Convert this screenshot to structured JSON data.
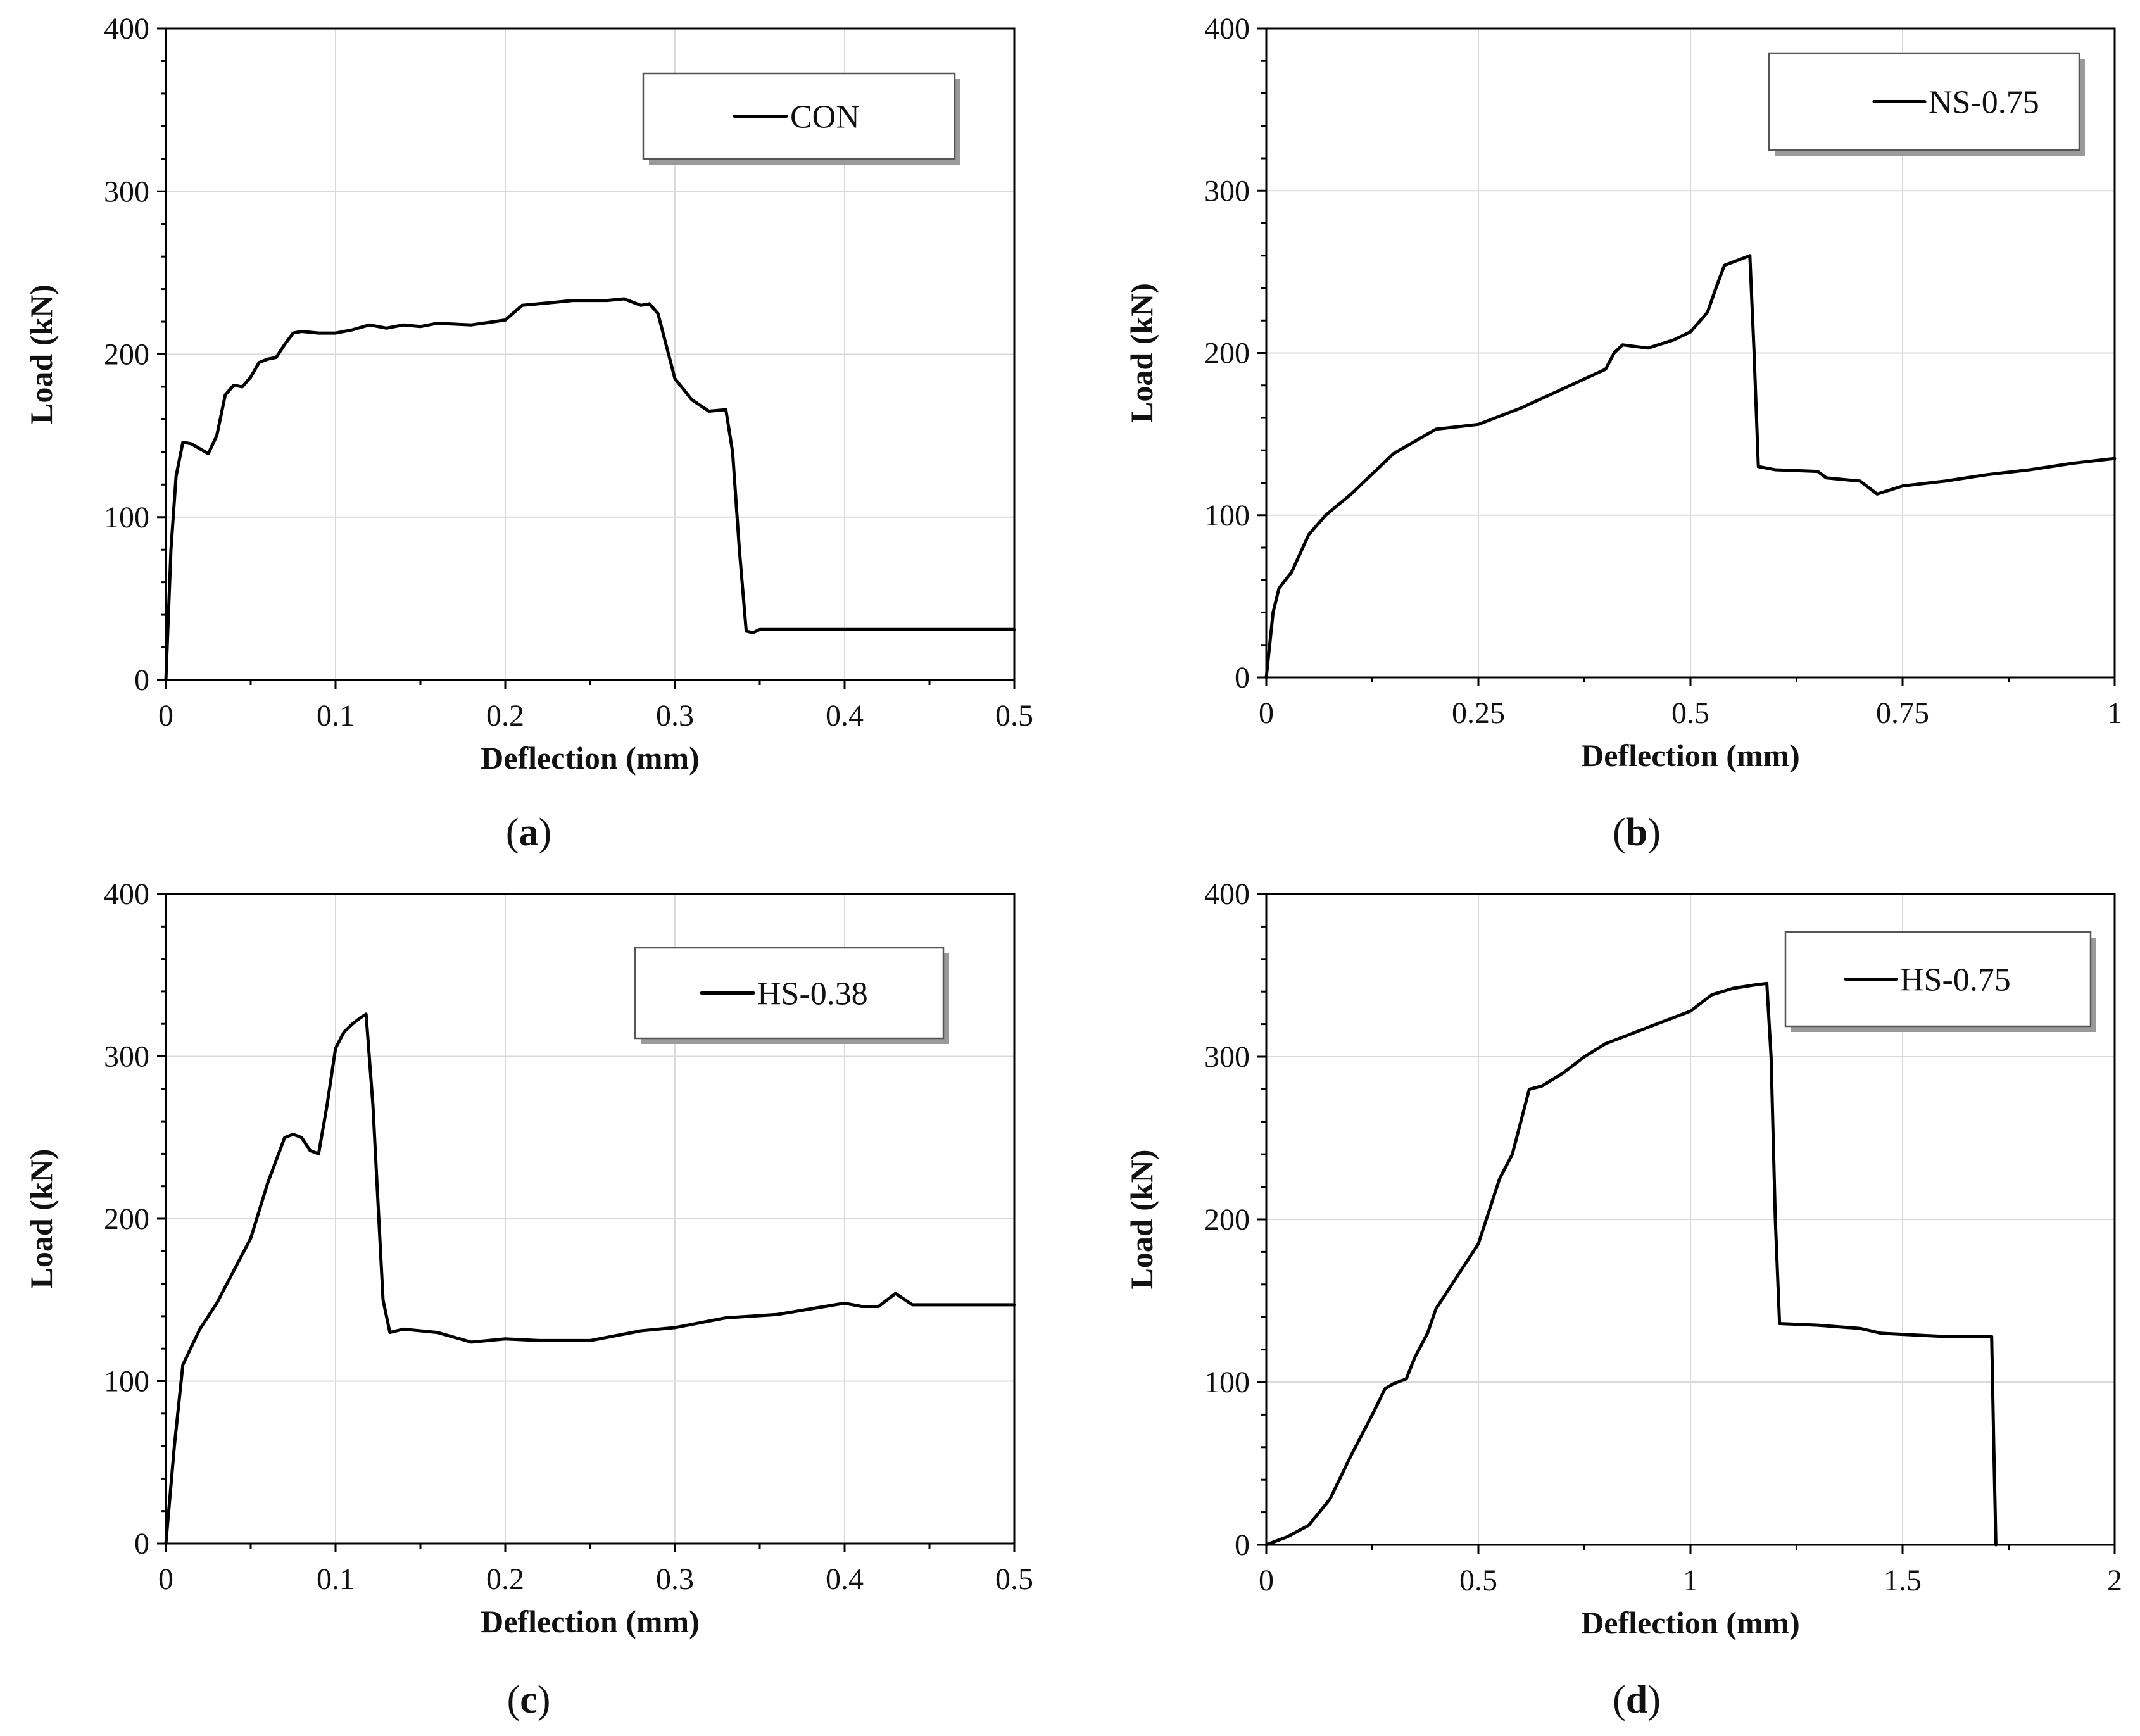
{
  "chart_data": [
    {
      "type": "line",
      "caption": "a",
      "xlabel": "Deflection (mm)",
      "ylabel": "Load (kN)",
      "xlim": [
        0,
        0.5
      ],
      "ylim": [
        0,
        400
      ],
      "xticks": [
        0,
        0.1,
        0.2,
        0.3,
        0.4,
        0.5
      ],
      "xtick_labels": [
        "0",
        "0.1",
        "0.2",
        "0.3",
        "0.4",
        "0.5"
      ],
      "yticks": [
        0,
        100,
        200,
        300,
        400
      ],
      "ytick_labels": [
        "0",
        "100",
        "200",
        "300",
        "400"
      ],
      "grid": true,
      "legend_position": "top-right",
      "series": [
        {
          "name": "CON",
          "x": [
            0,
            0.003,
            0.006,
            0.01,
            0.015,
            0.02,
            0.025,
            0.03,
            0.035,
            0.04,
            0.045,
            0.05,
            0.055,
            0.06,
            0.065,
            0.07,
            0.075,
            0.08,
            0.09,
            0.1,
            0.11,
            0.12,
            0.13,
            0.14,
            0.15,
            0.16,
            0.18,
            0.2,
            0.21,
            0.22,
            0.24,
            0.26,
            0.27,
            0.28,
            0.285,
            0.29,
            0.3,
            0.31,
            0.32,
            0.33,
            0.334,
            0.338,
            0.342,
            0.346,
            0.35,
            0.5
          ],
          "y": [
            0,
            80,
            125,
            146,
            145,
            142,
            139,
            150,
            175,
            181,
            180,
            186,
            195,
            197,
            198,
            206,
            213,
            214,
            213,
            213,
            215,
            218,
            216,
            218,
            217,
            219,
            218,
            221,
            230,
            231,
            233,
            233,
            234,
            230,
            231,
            225,
            185,
            172,
            165,
            166,
            140,
            80,
            30,
            29,
            31,
            31
          ]
        }
      ]
    },
    {
      "type": "line",
      "caption": "b",
      "xlabel": "Deflection (mm)",
      "ylabel": "Load (kN)",
      "xlim": [
        0,
        1
      ],
      "ylim": [
        0,
        400
      ],
      "xticks": [
        0,
        0.25,
        0.5,
        0.75,
        1
      ],
      "xtick_labels": [
        "0",
        "0.25",
        "0.5",
        "0.75",
        "1"
      ],
      "yticks": [
        0,
        100,
        200,
        300,
        400
      ],
      "ytick_labels": [
        "0",
        "100",
        "200",
        "300",
        "400"
      ],
      "grid": true,
      "legend_position": "top-right",
      "series": [
        {
          "name": "NS-0.75",
          "x": [
            0,
            0.008,
            0.015,
            0.03,
            0.05,
            0.07,
            0.1,
            0.15,
            0.2,
            0.25,
            0.3,
            0.35,
            0.4,
            0.41,
            0.42,
            0.45,
            0.48,
            0.5,
            0.52,
            0.53,
            0.54,
            0.55,
            0.57,
            0.575,
            0.58,
            0.6,
            0.65,
            0.66,
            0.7,
            0.72,
            0.75,
            0.8,
            0.85,
            0.9,
            0.95,
            1.0
          ],
          "y": [
            0,
            40,
            55,
            65,
            88,
            100,
            113,
            138,
            153,
            156,
            166,
            178,
            190,
            200,
            205,
            203,
            208,
            213,
            225,
            240,
            254,
            256,
            260,
            200,
            130,
            128,
            127,
            123,
            121,
            113,
            118,
            121,
            125,
            128,
            132,
            135
          ]
        }
      ]
    },
    {
      "type": "line",
      "caption": "c",
      "xlabel": "Deflection (mm)",
      "ylabel": "Load (kN)",
      "xlim": [
        0,
        0.5
      ],
      "ylim": [
        0,
        400
      ],
      "xticks": [
        0,
        0.1,
        0.2,
        0.3,
        0.4,
        0.5
      ],
      "xtick_labels": [
        "0",
        "0.1",
        "0.2",
        "0.3",
        "0.4",
        "0.5"
      ],
      "yticks": [
        0,
        100,
        200,
        300,
        400
      ],
      "ytick_labels": [
        "0",
        "100",
        "200",
        "300",
        "400"
      ],
      "grid": true,
      "legend_position": "top-right",
      "series": [
        {
          "name": "HS-0.38",
          "x": [
            0,
            0.005,
            0.01,
            0.02,
            0.03,
            0.04,
            0.05,
            0.06,
            0.07,
            0.075,
            0.08,
            0.085,
            0.09,
            0.095,
            0.1,
            0.105,
            0.11,
            0.115,
            0.118,
            0.122,
            0.128,
            0.132,
            0.14,
            0.16,
            0.18,
            0.2,
            0.22,
            0.25,
            0.28,
            0.3,
            0.33,
            0.36,
            0.4,
            0.41,
            0.42,
            0.43,
            0.44,
            0.45,
            0.5
          ],
          "y": [
            0,
            60,
            110,
            132,
            148,
            168,
            188,
            222,
            250,
            252,
            250,
            242,
            240,
            270,
            305,
            315,
            320,
            324,
            326,
            270,
            150,
            130,
            132,
            130,
            124,
            126,
            125,
            125,
            131,
            133,
            139,
            141,
            148,
            146,
            146,
            154,
            147,
            147,
            147
          ]
        }
      ]
    },
    {
      "type": "line",
      "caption": "d",
      "xlabel": "Deflection (mm)",
      "ylabel": "Load (kN)",
      "xlim": [
        0,
        2
      ],
      "ylim": [
        0,
        400
      ],
      "xticks": [
        0,
        0.5,
        1,
        1.5,
        2
      ],
      "xtick_labels": [
        "0",
        "0.5",
        "1",
        "1.5",
        "2"
      ],
      "yticks": [
        0,
        100,
        200,
        300,
        400
      ],
      "ytick_labels": [
        "0",
        "100",
        "200",
        "300",
        "400"
      ],
      "grid": true,
      "legend_position": "top-right",
      "series": [
        {
          "name": "HS-0.75",
          "x": [
            0,
            0.05,
            0.1,
            0.15,
            0.2,
            0.25,
            0.28,
            0.3,
            0.33,
            0.35,
            0.38,
            0.4,
            0.45,
            0.5,
            0.55,
            0.58,
            0.6,
            0.62,
            0.65,
            0.7,
            0.75,
            0.8,
            0.9,
            1.0,
            1.05,
            1.1,
            1.15,
            1.18,
            1.19,
            1.2,
            1.21,
            1.3,
            1.4,
            1.45,
            1.6,
            1.71,
            1.715,
            1.72
          ],
          "y": [
            0,
            5,
            12,
            28,
            55,
            80,
            96,
            99,
            102,
            115,
            130,
            145,
            165,
            185,
            225,
            240,
            260,
            280,
            282,
            290,
            300,
            308,
            318,
            328,
            338,
            342,
            344,
            345,
            300,
            200,
            136,
            135,
            133,
            130,
            128,
            128,
            60,
            0
          ]
        }
      ]
    }
  ]
}
